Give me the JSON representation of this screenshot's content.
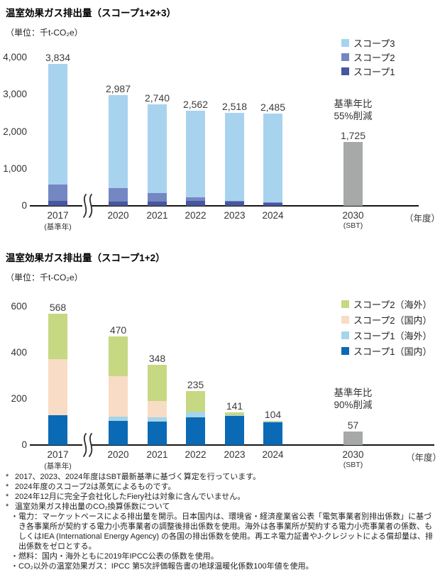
{
  "chart_data": [
    {
      "type": "bar",
      "stacked": true,
      "title": "温室効果ガス排出量（スコープ1+2+3）",
      "unit_label": "（単位：千t-CO₂e）",
      "xlabel": "（年度）",
      "ylim": [
        0,
        4000
      ],
      "ytick_values": [
        0,
        1000,
        2000,
        3000,
        4000
      ],
      "ytick_labels": [
        "0",
        "1,000",
        "2,000",
        "3,000",
        "4,000"
      ],
      "categories": [
        {
          "year": "2017",
          "sub": "(基準年)"
        },
        {
          "year": "2020"
        },
        {
          "year": "2021"
        },
        {
          "year": "2022"
        },
        {
          "year": "2023"
        },
        {
          "year": "2024"
        },
        {
          "year": "2030",
          "sub": "(SBT)"
        }
      ],
      "axis_break_after_first": true,
      "totals": [
        3834,
        2987,
        2740,
        2562,
        2518,
        2485,
        1725
      ],
      "bar_labels": [
        "3,834",
        "2,987",
        "2,740",
        "2,562",
        "2,518",
        "2,485",
        "1,725"
      ],
      "segments_estimated_from_pixels": true,
      "series": [
        {
          "name": "スコープ1",
          "color": "#47579f",
          "values": [
            130,
            122,
            119,
            143,
            129,
            101,
            0
          ]
        },
        {
          "name": "スコープ2",
          "color": "#7487c3",
          "values": [
            438,
            348,
            229,
            92,
            12,
            3,
            0
          ]
        },
        {
          "name": "スコープ3",
          "color": "#a8d3ef",
          "values": [
            3266,
            2517,
            2392,
            2327,
            2377,
            2381,
            0
          ]
        },
        {
          "name": "2030(SBT)",
          "color": "#a7a8a8",
          "values": [
            0,
            0,
            0,
            0,
            0,
            0,
            1725
          ]
        }
      ],
      "legend": [
        {
          "label": "スコープ3",
          "color": "#a8d3ef"
        },
        {
          "label": "スコープ2",
          "color": "#7487c3"
        },
        {
          "label": "スコープ1",
          "color": "#47579f"
        }
      ],
      "annotation": [
        "基準年比",
        "55%削減"
      ]
    },
    {
      "type": "bar",
      "stacked": true,
      "title": "温室効果ガス排出量（スコープ1+2）",
      "unit_label": "（単位：千t-CO₂e）",
      "xlabel": "（年度）",
      "ylim": [
        0,
        600
      ],
      "ytick_values": [
        0,
        200,
        400,
        600
      ],
      "ytick_labels": [
        "0",
        "200",
        "400",
        "600"
      ],
      "categories": [
        {
          "year": "2017",
          "sub": "(基準年)"
        },
        {
          "year": "2020"
        },
        {
          "year": "2021"
        },
        {
          "year": "2022"
        },
        {
          "year": "2023"
        },
        {
          "year": "2024"
        },
        {
          "year": "2030",
          "sub": "(SBT)"
        }
      ],
      "axis_break_after_first": true,
      "totals": [
        568,
        470,
        348,
        235,
        141,
        104,
        57
      ],
      "bar_labels": [
        "568",
        "470",
        "348",
        "235",
        "141",
        "104",
        "57"
      ],
      "segments_estimated_from_pixels": true,
      "series": [
        {
          "name": "スコープ1（国内）",
          "color": "#0a6ab5",
          "values": [
            130,
            104,
            101,
            120,
            125,
            98,
            0
          ]
        },
        {
          "name": "スコープ1（海外）",
          "color": "#a6d5e9",
          "values": [
            0,
            18,
            18,
            23,
            4,
            3,
            0
          ]
        },
        {
          "name": "スコープ2（国内）",
          "color": "#f8dcc5",
          "values": [
            243,
            176,
            71,
            0,
            0,
            0,
            0
          ]
        },
        {
          "name": "スコープ2（海外）",
          "color": "#c6d881",
          "values": [
            195,
            172,
            158,
            92,
            12,
            3,
            0
          ]
        },
        {
          "name": "2030(SBT)",
          "color": "#a7a8a8",
          "values": [
            0,
            0,
            0,
            0,
            0,
            0,
            57
          ]
        }
      ],
      "legend": [
        {
          "label": "スコープ2（海外）",
          "color": "#c6d881"
        },
        {
          "label": "スコープ2（国内）",
          "color": "#f8dcc5"
        },
        {
          "label": "スコープ1（海外）",
          "color": "#a6d5e9"
        },
        {
          "label": "スコープ1（国内）",
          "color": "#0a6ab5"
        }
      ],
      "annotation": [
        "基準年比",
        "90%削減"
      ]
    }
  ],
  "footnotes": [
    {
      "marker": "*",
      "level": 1,
      "text": "2017、2023、2024年度はSBT最新基準に基づく算定を行っています。"
    },
    {
      "marker": "*",
      "level": 1,
      "text": "2024年度のスコープ2は蒸気によるものです。"
    },
    {
      "marker": "*",
      "level": 1,
      "text": "2024年12月に完全子会社化したFiery社は対象に含んでいません。"
    },
    {
      "marker": "*",
      "level": 1,
      "text": "温室効果ガス排出量のCO₂換算係数について"
    },
    {
      "marker": "・",
      "level": 2,
      "text": "電力：マーケットベースによる排出量を開示。日本国内は、環境省・経済産業省公表「電気事業者別排出係数」に基づき各事業所が契約する電力小売事業者の調整後排出係数を使用。海外は各事業所が契約する電力小売事業者の係数、もしくはIEA (International Energy Agency) の各国の排出係数を使用。再エネ電力証書やJ-クレジットによる償却量は、排出係数をゼロとする。"
    },
    {
      "marker": "・",
      "level": 2,
      "text": "燃料：国内・海外ともに2019年IPCC公表の係数を使用。"
    },
    {
      "marker": "・",
      "level": 2,
      "text": "CO₂以外の温室効果ガス：IPCC 第5次評価報告書の地球温暖化係数100年値を使用。"
    }
  ]
}
